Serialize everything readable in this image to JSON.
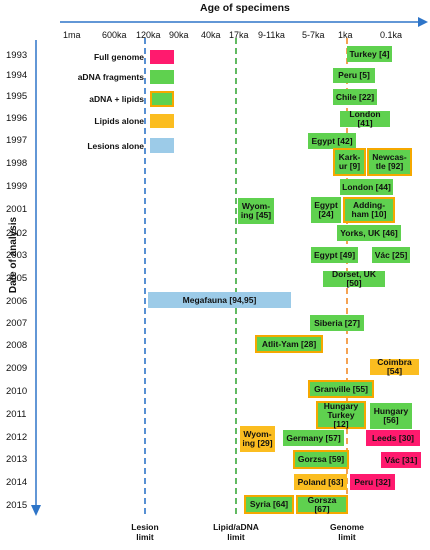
{
  "header": {
    "title": "Age of specimens"
  },
  "y_axis_label": "Date of analysis",
  "colors": {
    "full_genome": "#ff1a6e",
    "adna": "#5fd14f",
    "lipids": "#fbbd20",
    "lesions": "#9ccbe8",
    "outline": "#f5a800",
    "axis": "#2e75c8",
    "lesion_limit": "#2e75c8",
    "lipid_limit": "#3aa83a",
    "genome_limit": "#f28c28"
  },
  "age_ticks": [
    "1ma",
    "600ka",
    "120ka",
    "90ka",
    "40ka",
    "17ka",
    "9-11ka",
    "5-7ka",
    "1ka",
    "0.1ka"
  ],
  "years": [
    "1993",
    "1994",
    "1995",
    "1996",
    "1997",
    "1998",
    "1999",
    "2001",
    "2002",
    "2003",
    "2005",
    "2006",
    "2007",
    "2008",
    "2009",
    "2010",
    "2011",
    "2012",
    "2013",
    "2014",
    "2015"
  ],
  "legend": [
    {
      "label": "Full genome",
      "color": "#ff1a6e",
      "outlined": false
    },
    {
      "label": "aDNA fragments",
      "color": "#5fd14f",
      "outlined": false
    },
    {
      "label": "aDNA + lipids",
      "color": "#5fd14f",
      "outlined": true
    },
    {
      "label": "Lipids alone",
      "color": "#fbbd20",
      "outlined": false
    },
    {
      "label": "Lesions alone",
      "color": "#9ccbe8",
      "outlined": false
    }
  ],
  "limits": {
    "lesion": "Lesion\nlimit",
    "lipid": "Lipid/aDNA\nlimit",
    "genome": "Genome\nlimit"
  },
  "specimens": [
    {
      "label": "Turkey [4]",
      "year": "1993",
      "type": "adna"
    },
    {
      "label": "Peru [5]",
      "year": "1994",
      "type": "adna"
    },
    {
      "label": "Chile [22]",
      "year": "1995",
      "type": "adna"
    },
    {
      "label": "London [41]",
      "year": "1996",
      "type": "adna"
    },
    {
      "label": "Egypt [42]",
      "year": "1997",
      "type": "adna"
    },
    {
      "label": "Kark-\nur [9]",
      "year": "1998",
      "type": "adna+lipids"
    },
    {
      "label": "Newcas-\ntle [92]",
      "year": "1998",
      "type": "adna+lipids"
    },
    {
      "label": "London [44]",
      "year": "1999",
      "type": "adna"
    },
    {
      "label": "Wyom-\ning [45]",
      "year": "2001",
      "type": "adna"
    },
    {
      "label": "Egypt\n[24]",
      "year": "2001",
      "type": "adna"
    },
    {
      "label": "Adding-\nham [10]",
      "year": "2001",
      "type": "adna+lipids"
    },
    {
      "label": "Yorks, UK [46]",
      "year": "2002",
      "type": "adna"
    },
    {
      "label": "Egypt [49]",
      "year": "2003",
      "type": "adna"
    },
    {
      "label": "Vác [25]",
      "year": "2003",
      "type": "adna"
    },
    {
      "label": "Dorset, UK [50]",
      "year": "2005",
      "type": "adna"
    },
    {
      "label": "Megafauna [94,95]",
      "year": "2006",
      "type": "lesions"
    },
    {
      "label": "Siberia [27]",
      "year": "2007",
      "type": "adna"
    },
    {
      "label": "Atlit-Yam [28]",
      "year": "2008",
      "type": "adna+lipids"
    },
    {
      "label": "Coimbra [54]",
      "year": "2009",
      "type": "lipids"
    },
    {
      "label": "Granville [55]",
      "year": "2010",
      "type": "adna+lipids"
    },
    {
      "label": "Hungary\nTurkey [12]",
      "year": "2011",
      "type": "adna+lipids"
    },
    {
      "label": "Hungary\n[56]",
      "year": "2011",
      "type": "adna"
    },
    {
      "label": "Wyom-\ning [29]",
      "year": "2012",
      "type": "lipids"
    },
    {
      "label": "Germany [57]",
      "year": "2012",
      "type": "adna"
    },
    {
      "label": "Leeds [30]",
      "year": "2012",
      "type": "full_genome"
    },
    {
      "label": "Gorzsa [59]",
      "year": "2013",
      "type": "adna+lipids"
    },
    {
      "label": "Vác [31]",
      "year": "2013",
      "type": "full_genome"
    },
    {
      "label": "Poland [63]",
      "year": "2014",
      "type": "lipids"
    },
    {
      "label": "Peru [32]",
      "year": "2014",
      "type": "full_genome"
    },
    {
      "label": "Syria [64]",
      "year": "2015",
      "type": "adna+lipids"
    },
    {
      "label": "Gorsza [67]",
      "year": "2015",
      "type": "adna+lipids"
    }
  ]
}
